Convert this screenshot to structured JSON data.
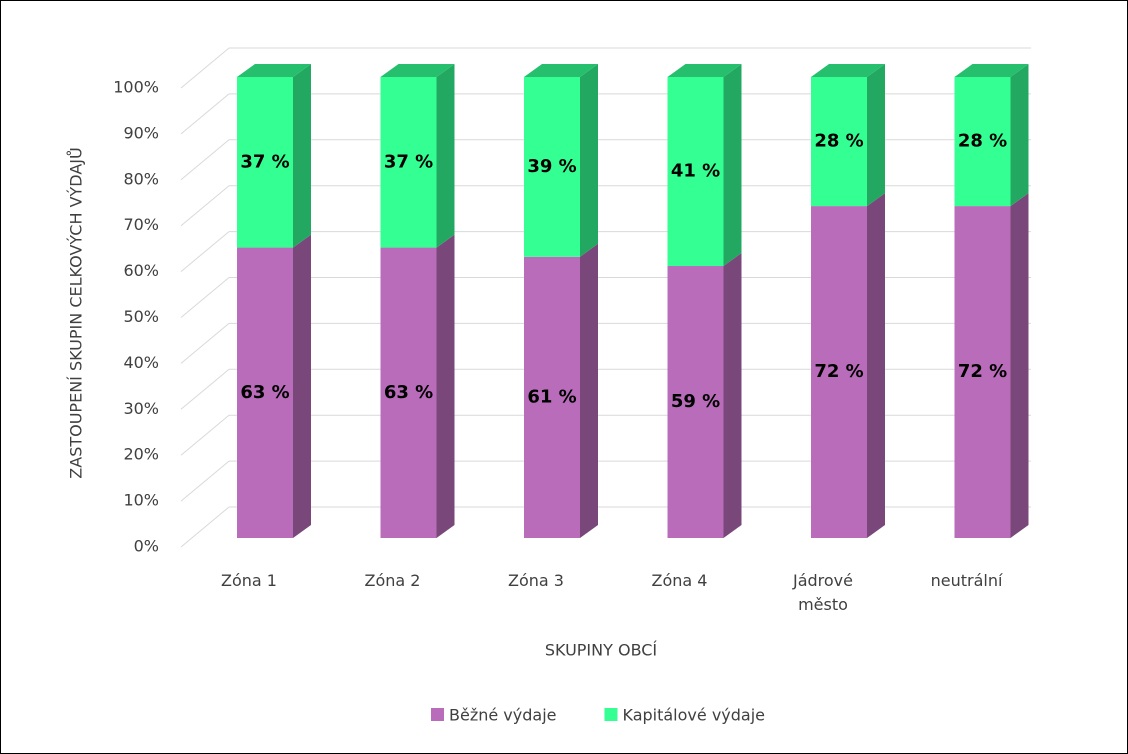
{
  "chart_data": {
    "type": "bar3d_stacked",
    "x_label": "SKUPINY OBCÍ",
    "y_label": "ZASTOUPENÍ SKUPIN CELKOVÝCH VÝDAJŮ",
    "categories": [
      "Zóna 1",
      "Zóna 2",
      "Zóna 3",
      "Zóna 4",
      "Jádrové město",
      "neutrální"
    ],
    "series": [
      {
        "name": "Běžné výdaje",
        "color": "#b96cba",
        "values": [
          63,
          63,
          61,
          59,
          72,
          72
        ],
        "value_labels": [
          "63 %",
          "63 %",
          "61 %",
          "59 %",
          "72 %",
          "72 %"
        ]
      },
      {
        "name": "Kapitálové výdaje",
        "color": "#33ff92",
        "values": [
          37,
          37,
          39,
          41,
          28,
          28
        ],
        "value_labels": [
          "37 %",
          "37 %",
          "39 %",
          "41 %",
          "28 %",
          "28 %"
        ]
      }
    ],
    "ylim": [
      0,
      100
    ],
    "yticks": [
      {
        "value": 0,
        "label": "0%"
      },
      {
        "value": 10,
        "label": "10%"
      },
      {
        "value": 20,
        "label": "20%"
      },
      {
        "value": 30,
        "label": "30%"
      },
      {
        "value": 40,
        "label": "40%"
      },
      {
        "value": 50,
        "label": "50%"
      },
      {
        "value": 60,
        "label": "60%"
      },
      {
        "value": 70,
        "label": "70%"
      },
      {
        "value": 80,
        "label": "80%"
      },
      {
        "value": 90,
        "label": "90%"
      },
      {
        "value": 100,
        "label": "100%"
      }
    ],
    "grid": true,
    "legend": "bottom"
  }
}
